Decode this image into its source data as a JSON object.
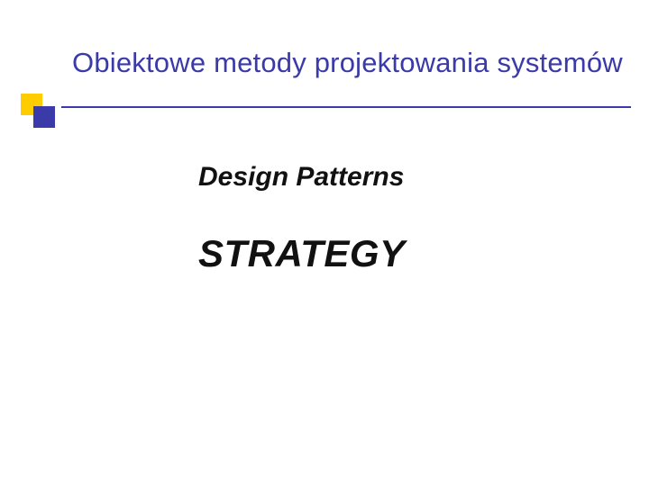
{
  "colors": {
    "title": "#3a3aa8",
    "rule": "#3a3aa8",
    "square_yellow": "#ffcc00",
    "square_blue": "#3a3aa8",
    "subtitle": "#111111",
    "main": "#111111",
    "background": "#ffffff"
  },
  "title": "Obiektowe metody projektowania systemów",
  "subtitle": "Design Patterns",
  "main": "STRATEGY",
  "fonts": {
    "title_size": 31,
    "subtitle_size": 30,
    "main_size": 42
  }
}
